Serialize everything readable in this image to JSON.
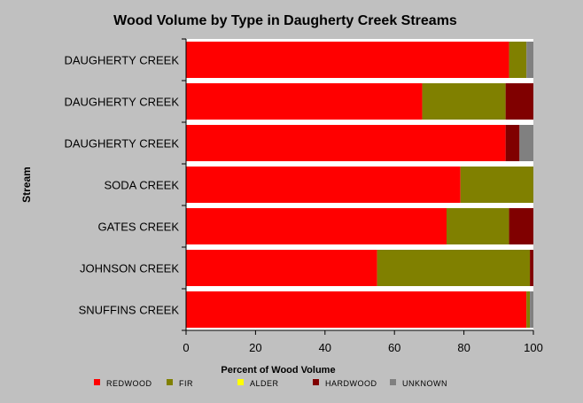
{
  "chart_data": {
    "type": "bar",
    "orientation": "horizontal",
    "stacked": true,
    "title": "Wood Volume by Type in Daugherty Creek Streams",
    "xlabel": "Percent of Wood Volume",
    "ylabel": "Stream",
    "xlim": [
      0,
      100
    ],
    "xticks": [
      0,
      20,
      40,
      60,
      80,
      100
    ],
    "grid": false,
    "legend_position": "bottom",
    "categories": [
      "DAUGHERTY CREEK",
      "DAUGHERTY CREEK",
      "DAUGHERTY CREEK",
      "SODA CREEK",
      "GATES CREEK",
      "JOHNSON CREEK",
      "SNUFFINS CREEK"
    ],
    "series": [
      {
        "name": "REDWOOD",
        "color": "#ff0000",
        "values": [
          93,
          68,
          92,
          79,
          75,
          55,
          98
        ]
      },
      {
        "name": "FIR",
        "color": "#808000",
        "values": [
          5,
          24,
          0,
          21,
          18,
          44,
          1
        ]
      },
      {
        "name": "ALDER",
        "color": "#ffff00",
        "values": [
          0,
          0,
          0,
          0,
          0,
          0,
          0
        ]
      },
      {
        "name": "HARDWOOD",
        "color": "#800000",
        "values": [
          0,
          8,
          4,
          0,
          7,
          1,
          0
        ]
      },
      {
        "name": "UNKNOWN",
        "color": "#808080",
        "values": [
          2,
          0,
          4,
          0,
          0,
          0,
          1
        ]
      }
    ]
  },
  "colors": {
    "background": "#c0c0c0",
    "plot_background": "#ffffff"
  }
}
